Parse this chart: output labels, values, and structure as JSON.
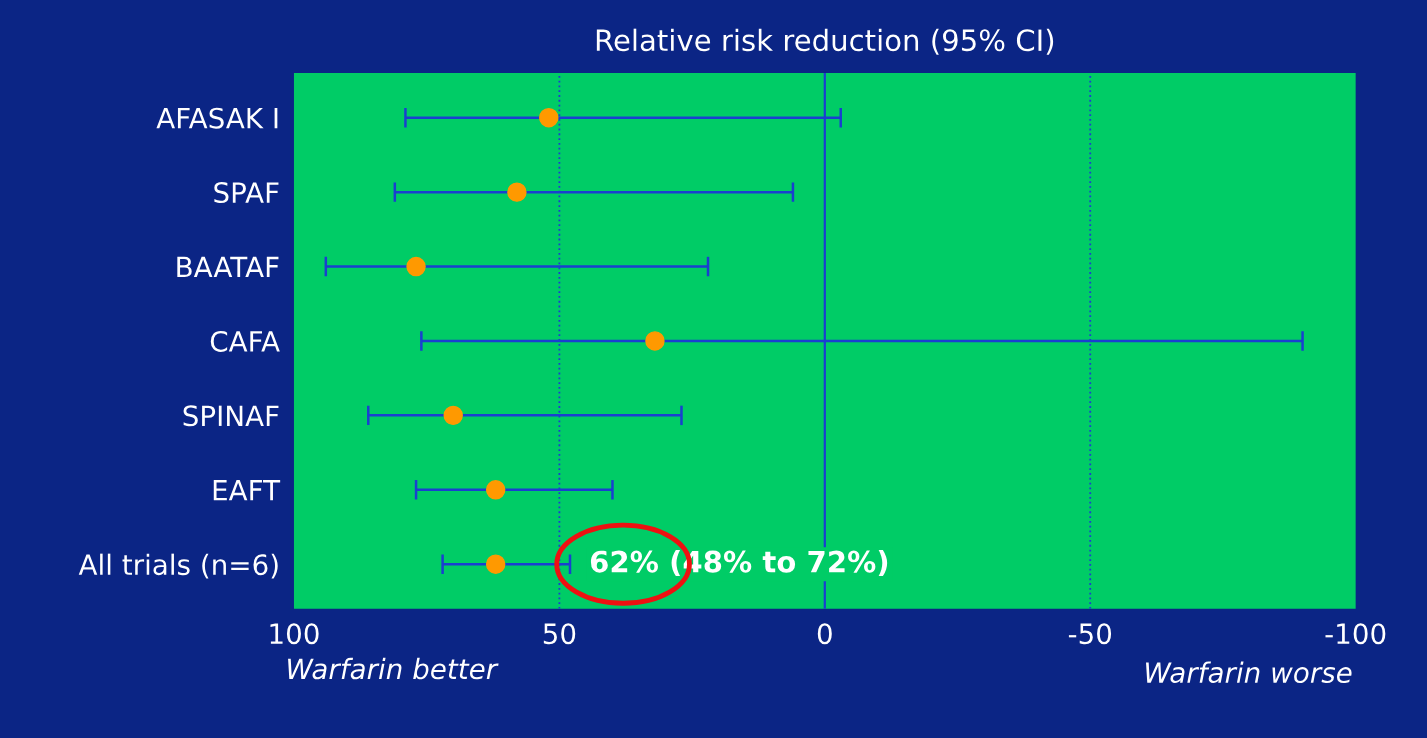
{
  "chart_data": {
    "type": "scatter",
    "orientation": "horizontal",
    "title": "Relative risk reduction (95% CI)",
    "categories": [
      "AFASAK I",
      "SPAF",
      "BAATAF",
      "CAFA",
      "SPINAF",
      "EAFT",
      "All trials (n=6)"
    ],
    "series": [
      {
        "color": "#ff9900",
        "values": [
          52,
          58,
          77,
          32,
          70,
          62,
          62
        ],
        "errors": [
          [
            -3,
            79
          ],
          [
            6,
            81
          ],
          [
            22,
            94
          ],
          [
            -90,
            76
          ],
          [
            27,
            86
          ],
          [
            40,
            77
          ],
          [
            48,
            72
          ]
        ]
      }
    ],
    "marker": "circle",
    "xlim": [
      100,
      -100
    ],
    "xticks": [
      100,
      50,
      0,
      -50,
      -100
    ],
    "ref_lines": [
      {
        "axis": "x",
        "value": 50,
        "color": "#1a3fd0",
        "line_style": "dotted"
      },
      {
        "axis": "x",
        "value": -50,
        "color": "#1a3fd0",
        "line_style": "dotted"
      },
      {
        "axis": "x",
        "value": 0,
        "color": "#1a3fd0",
        "line_style": "solid"
      }
    ],
    "annotations": [
      "62% (48% to 72%)",
      "Warfarin better",
      "Warfarin worse"
    ],
    "grid": false,
    "legend": false
  }
}
